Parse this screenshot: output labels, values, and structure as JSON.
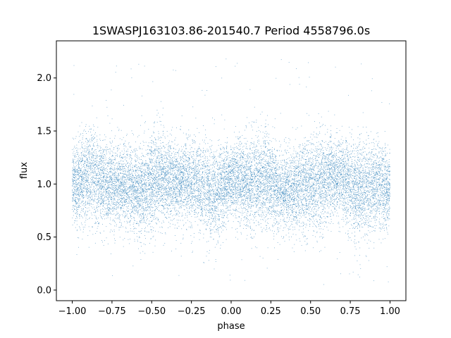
{
  "chart_data": {
    "type": "scatter",
    "title": "1SWASPJ163103.86-201540.7 Period 4558796.0s",
    "xlabel": "phase",
    "ylabel": "flux",
    "xlim": [
      -1.1,
      1.1
    ],
    "ylim": [
      -0.1,
      2.35
    ],
    "xticks": [
      -1.0,
      -0.75,
      -0.5,
      -0.25,
      0.0,
      0.25,
      0.5,
      0.75,
      1.0
    ],
    "xtick_labels": [
      "−1.00",
      "−0.75",
      "−0.50",
      "−0.25",
      "0.00",
      "0.25",
      "0.50",
      "0.75",
      "1.00"
    ],
    "yticks": [
      0.0,
      0.5,
      1.0,
      1.5,
      2.0
    ],
    "ytick_labels": [
      "0.0",
      "0.5",
      "1.0",
      "1.5",
      "2.0"
    ],
    "grid": false,
    "point_color": "#1f77b4",
    "series": [
      {
        "description_points": "dense phase-folded light curve; flux centered near 1.0 with spread ~0.6-1.4, outliers 0.0-2.2",
        "x_range": [
          -1.0,
          1.0
        ],
        "typical_y_center": 1.0,
        "typical_y_spread": 0.2
      }
    ]
  }
}
